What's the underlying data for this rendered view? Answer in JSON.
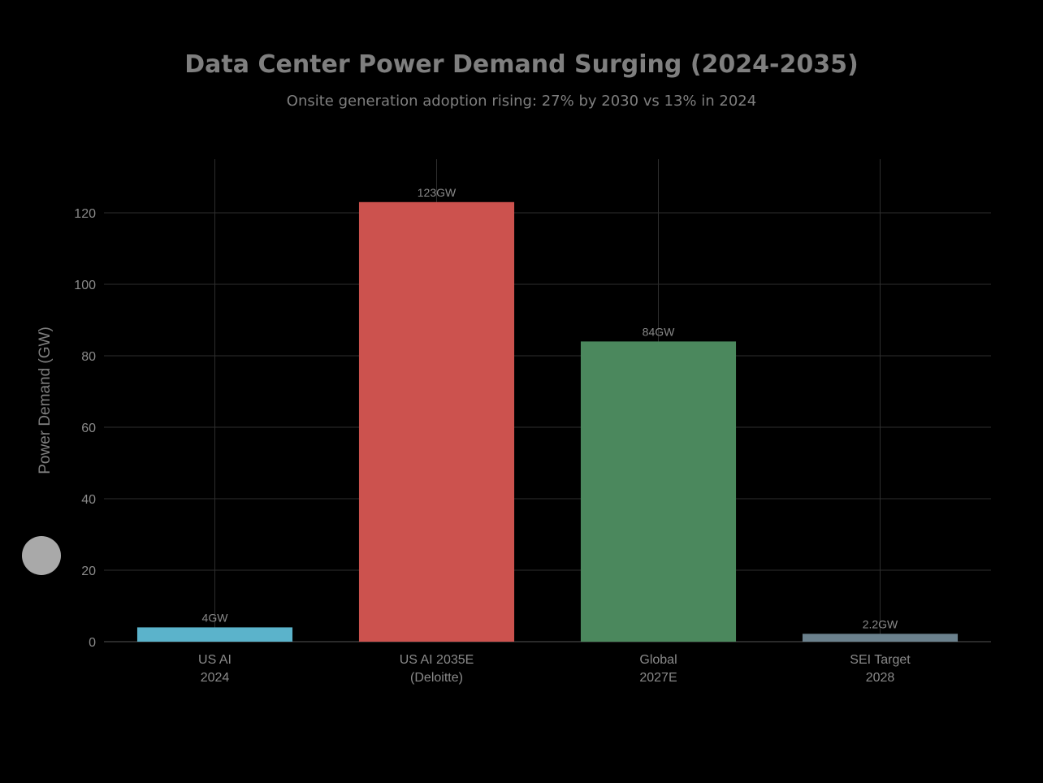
{
  "chart_data": {
    "type": "bar",
    "title": "Data Center Power Demand Surging (2024-2035)",
    "subtitle": "Onsite generation adoption rising: 27% by 2030 vs 13% in 2024",
    "ylabel": "Power Demand (GW)",
    "xlabel": "",
    "ylim": [
      0,
      135
    ],
    "yticks": [
      0,
      20,
      40,
      60,
      80,
      100,
      120
    ],
    "grid": true,
    "categories": [
      [
        "US AI",
        "2024"
      ],
      [
        "US AI 2035E",
        "(Deloitte)"
      ],
      [
        "Global",
        "2027E"
      ],
      [
        "SEI Target",
        "2028"
      ]
    ],
    "values": [
      4,
      123,
      84,
      2.2
    ],
    "data_labels": [
      "4GW",
      "123GW",
      "84GW",
      "2.2GW"
    ],
    "colors": [
      "#5bb3cb",
      "#cc524e",
      "#4b885d",
      "#6b818d"
    ]
  },
  "colors": {
    "background": "#000000",
    "grid": "#2e2e2e",
    "text": "#8a8a8a",
    "floating_button": "#a9a9a9"
  }
}
